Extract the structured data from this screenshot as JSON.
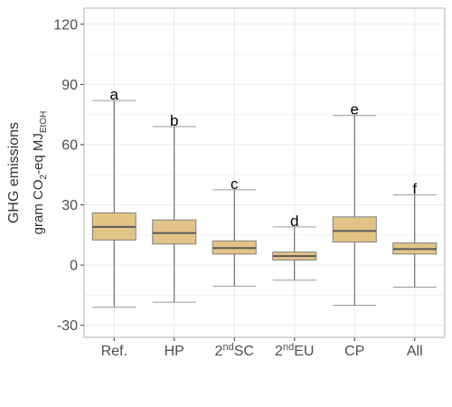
{
  "chart_data": {
    "type": "box",
    "ylabel": {
      "line1": "GHG emissions",
      "line2_prefix": "gram CO",
      "line2_sub1": "2",
      "line2_mid": "-eq MJ",
      "line2_sub2": "EtOH"
    },
    "ylim": [
      -36,
      128
    ],
    "yticks": [
      -30,
      0,
      30,
      60,
      90,
      120
    ],
    "ytick_labels": [
      "-30",
      "0",
      "30",
      "60",
      "90",
      "120"
    ],
    "grid": true,
    "categories": [
      {
        "base": "Ref.",
        "sup": "",
        "rest": ""
      },
      {
        "base": "HP",
        "sup": "",
        "rest": ""
      },
      {
        "base": "2",
        "sup": "nd",
        "rest": "SC"
      },
      {
        "base": "2",
        "sup": "nd",
        "rest": "EU"
      },
      {
        "base": "CP",
        "sup": "",
        "rest": ""
      },
      {
        "base": "All",
        "sup": "",
        "rest": ""
      }
    ],
    "boxes": [
      {
        "min": -21,
        "q1": 12.5,
        "median": 19,
        "q3": 26,
        "max": 82,
        "letter": "a"
      },
      {
        "min": -18.5,
        "q1": 10.5,
        "median": 16,
        "q3": 22.5,
        "max": 69,
        "letter": "b"
      },
      {
        "min": -10.5,
        "q1": 5.5,
        "median": 8.5,
        "q3": 12,
        "max": 37.5,
        "letter": "c"
      },
      {
        "min": -7.5,
        "q1": 2.5,
        "median": 4.5,
        "q3": 6.5,
        "max": 19,
        "letter": "d"
      },
      {
        "min": -20,
        "q1": 11.5,
        "median": 17,
        "q3": 24,
        "max": 74.5,
        "letter": "e"
      },
      {
        "min": -11,
        "q1": 5.5,
        "median": 8,
        "q3": 11,
        "max": 35,
        "letter": "f"
      }
    ],
    "colors": {
      "box_fill": "#e3c487",
      "box_stroke": "#7f7f7f",
      "median": "#5a5a5a",
      "whisker": "#555555",
      "cap": "#9a9a9a",
      "grid": "#ebebeb",
      "panel_border": "#b3b3b3"
    }
  }
}
